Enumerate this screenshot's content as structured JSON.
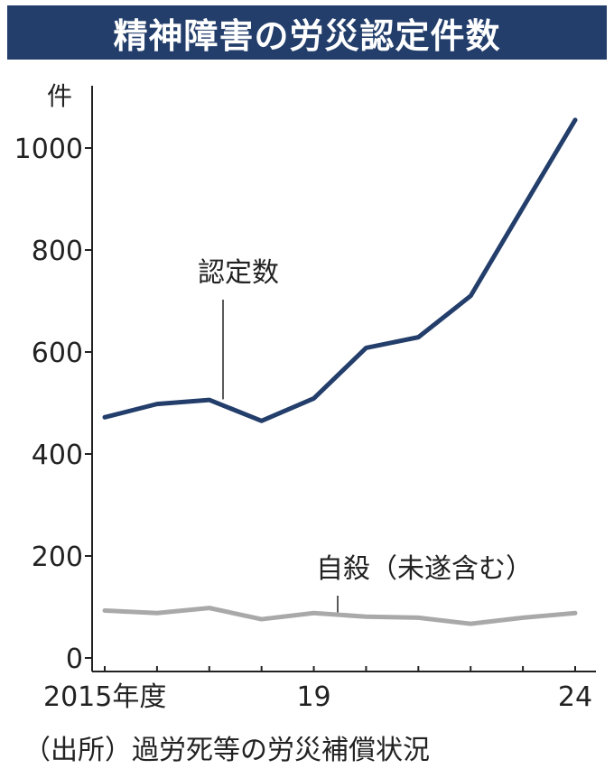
{
  "title": "精神障害の労災認定件数",
  "source": "（出所）過労死等の労災補償状況",
  "chart_data": {
    "type": "line",
    "x": [
      2015,
      2016,
      2017,
      2018,
      2019,
      2020,
      2021,
      2022,
      2023,
      2024
    ],
    "x_tick_labels": [
      {
        "x": 2015,
        "label": "2015年度"
      },
      {
        "x": 2019,
        "label": "19"
      },
      {
        "x": 2024,
        "label": "24"
      }
    ],
    "y_unit": "件",
    "ylim": [
      0,
      1100
    ],
    "y_ticks": [
      0,
      200,
      400,
      600,
      800,
      1000
    ],
    "grid": false,
    "legend": "none",
    "series": [
      {
        "name": "認定数",
        "color": "#233e6b",
        "values": [
          472,
          498,
          506,
          465,
          509,
          608,
          629,
          710,
          883,
          1055
        ]
      },
      {
        "name": "自殺（未遂含む）",
        "color": "#a9a9a9",
        "values": [
          93,
          88,
          98,
          76,
          88,
          81,
          79,
          67,
          79,
          88
        ]
      }
    ]
  }
}
